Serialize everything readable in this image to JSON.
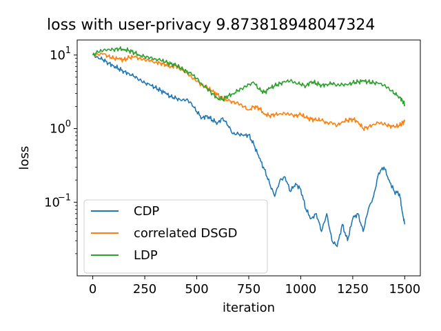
{
  "chart_data": {
    "type": "line",
    "title": "loss with user-privacy  9.873818948047324",
    "xlabel": "iteration",
    "ylabel": "loss",
    "yscale": "log",
    "xlim": [
      -75,
      1575
    ],
    "ylim": [
      0.01,
      16
    ],
    "xticks": [
      0,
      250,
      500,
      750,
      1000,
      1250,
      1500
    ],
    "xtick_labels": [
      "0",
      "250",
      "500",
      "750",
      "1000",
      "1250",
      "1500"
    ],
    "yticks": [
      0.1,
      1,
      10
    ],
    "ytick_labels": [
      {
        "base": "10",
        "exp": "−1"
      },
      {
        "base": "10",
        "exp": "0"
      },
      {
        "base": "10",
        "exp": "1"
      }
    ],
    "grid": false,
    "legend_position": "lower-left",
    "series": [
      {
        "name": "CDP",
        "color": "#1f77b4",
        "x": [
          0,
          25,
          50,
          75,
          100,
          125,
          150,
          175,
          200,
          225,
          250,
          275,
          300,
          325,
          350,
          375,
          400,
          425,
          450,
          475,
          500,
          525,
          550,
          575,
          600,
          625,
          650,
          675,
          700,
          725,
          750,
          775,
          800,
          825,
          850,
          875,
          900,
          925,
          950,
          975,
          1000,
          1025,
          1050,
          1075,
          1100,
          1125,
          1150,
          1175,
          1200,
          1225,
          1250,
          1275,
          1300,
          1325,
          1350,
          1375,
          1400,
          1425,
          1450,
          1475,
          1490,
          1500
        ],
        "y": [
          10,
          9.3,
          8.6,
          7.8,
          7.2,
          6.5,
          6.0,
          5.6,
          5.1,
          4.6,
          4.2,
          3.9,
          3.6,
          3.3,
          3.0,
          2.7,
          2.6,
          2.4,
          2.5,
          2.2,
          1.7,
          1.4,
          1.5,
          1.3,
          1.2,
          1.4,
          1.1,
          0.85,
          0.85,
          0.8,
          0.82,
          0.6,
          0.4,
          0.28,
          0.18,
          0.12,
          0.2,
          0.22,
          0.14,
          0.18,
          0.15,
          0.08,
          0.06,
          0.07,
          0.04,
          0.07,
          0.03,
          0.025,
          0.05,
          0.03,
          0.06,
          0.07,
          0.04,
          0.08,
          0.12,
          0.25,
          0.3,
          0.2,
          0.14,
          0.13,
          0.07,
          0.05
        ]
      },
      {
        "name": "correlated DSGD",
        "color": "#ff7f0e",
        "x": [
          0,
          25,
          50,
          75,
          100,
          125,
          150,
          175,
          200,
          225,
          250,
          275,
          300,
          325,
          350,
          375,
          400,
          425,
          450,
          475,
          500,
          525,
          550,
          575,
          600,
          625,
          650,
          675,
          700,
          725,
          750,
          775,
          800,
          825,
          850,
          875,
          900,
          925,
          950,
          975,
          1000,
          1025,
          1050,
          1075,
          1100,
          1125,
          1150,
          1175,
          1200,
          1225,
          1250,
          1275,
          1300,
          1325,
          1350,
          1375,
          1400,
          1425,
          1450,
          1475,
          1490,
          1500
        ],
        "y": [
          10,
          10.2,
          10.4,
          9.6,
          9.0,
          8.8,
          8.6,
          9.2,
          9.4,
          9.0,
          8.6,
          8.4,
          8.0,
          7.8,
          7.4,
          7.0,
          7.2,
          6.4,
          5.8,
          5.0,
          4.4,
          3.9,
          3.6,
          3.2,
          2.9,
          2.5,
          2.4,
          2.3,
          2.2,
          2.0,
          1.8,
          2.0,
          1.9,
          1.6,
          1.5,
          1.55,
          1.6,
          1.6,
          1.55,
          1.5,
          1.55,
          1.4,
          1.35,
          1.3,
          1.3,
          1.2,
          1.2,
          1.1,
          1.25,
          1.3,
          1.35,
          1.25,
          1.0,
          1.05,
          1.15,
          1.2,
          1.15,
          1.1,
          1.05,
          1.1,
          1.2,
          1.25
        ]
      },
      {
        "name": "LDP",
        "color": "#2ca02c",
        "x": [
          0,
          25,
          50,
          75,
          100,
          125,
          150,
          175,
          200,
          225,
          250,
          275,
          300,
          325,
          350,
          375,
          400,
          425,
          450,
          475,
          500,
          525,
          550,
          575,
          600,
          625,
          650,
          675,
          700,
          725,
          750,
          775,
          800,
          825,
          850,
          875,
          900,
          925,
          950,
          975,
          1000,
          1025,
          1050,
          1075,
          1100,
          1125,
          1150,
          1175,
          1200,
          1225,
          1250,
          1275,
          1300,
          1325,
          1350,
          1375,
          1400,
          1425,
          1450,
          1475,
          1490,
          1500
        ],
        "y": [
          10,
          11,
          11.5,
          12.0,
          11.8,
          12.2,
          12.0,
          11.5,
          10.8,
          10.0,
          9.5,
          9.2,
          8.8,
          8.5,
          8.0,
          7.6,
          7.2,
          6.5,
          6.0,
          5.5,
          4.8,
          4.0,
          3.5,
          3.0,
          2.6,
          2.5,
          2.8,
          3.0,
          3.3,
          3.6,
          4.0,
          4.2,
          3.4,
          3.1,
          3.5,
          3.8,
          4.1,
          4.3,
          4.5,
          4.2,
          4.0,
          3.8,
          4.4,
          4.1,
          3.9,
          4.0,
          4.1,
          3.9,
          4.0,
          3.9,
          4.2,
          4.3,
          4.4,
          4.3,
          4.2,
          4.1,
          3.9,
          3.5,
          3.0,
          2.7,
          2.4,
          2.1
        ]
      }
    ]
  }
}
